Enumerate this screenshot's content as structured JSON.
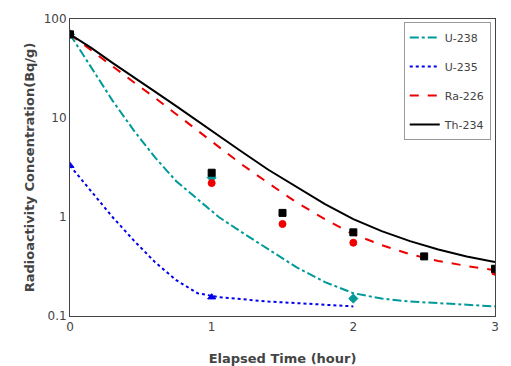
{
  "chart_data": {
    "type": "line",
    "xlabel": "Elapsed Time (hour)",
    "ylabel": "Radioactivity Concentration(Bq/g)",
    "log": "y",
    "grid": false,
    "legend": "upper right",
    "xlim": [
      0,
      3
    ],
    "xticks": [
      0,
      1,
      2,
      3
    ],
    "ylim": [
      0.1,
      100
    ],
    "yticks": [
      0.1,
      1,
      10,
      100
    ],
    "series": [
      {
        "name": "U-238",
        "color": "#009999",
        "line_style": "dashdot",
        "marker": "diamond",
        "x": [
          0,
          0.15,
          0.3,
          0.45,
          0.6,
          0.75,
          0.9,
          1.05,
          1.2,
          1.4,
          1.6,
          1.8,
          2.0,
          2.2,
          2.4,
          2.6,
          2.8,
          3.0
        ],
        "values": [
          70,
          32,
          15,
          7.5,
          4.0,
          2.3,
          1.5,
          1.0,
          0.72,
          0.47,
          0.31,
          0.22,
          0.17,
          0.15,
          0.14,
          0.135,
          0.13,
          0.125
        ],
        "points_x": [
          0,
          1.0,
          2.0
        ],
        "points_values": [
          70,
          2.5,
          0.15
        ]
      },
      {
        "name": "U-235",
        "color": "#0000EE",
        "line_style": "dot",
        "marker": "triangle-up",
        "x": [
          0,
          0.15,
          0.3,
          0.45,
          0.6,
          0.75,
          0.9,
          1.05,
          1.2,
          1.4,
          1.6,
          1.8,
          2.0
        ],
        "values": [
          3.3,
          1.8,
          1.0,
          0.58,
          0.35,
          0.23,
          0.17,
          0.155,
          0.148,
          0.14,
          0.135,
          0.13,
          0.125
        ],
        "points_x": [
          0,
          1.0
        ],
        "points_values": [
          3.3,
          0.155
        ]
      },
      {
        "name": "Ra-226",
        "color": "#EE0000",
        "line_style": "dash",
        "marker": "circle",
        "x": [
          0,
          0.15,
          0.3,
          0.45,
          0.6,
          0.75,
          0.9,
          1.05,
          1.2,
          1.4,
          1.6,
          1.8,
          2.0,
          2.2,
          2.4,
          2.6,
          2.8,
          3.0
        ],
        "values": [
          70,
          48,
          33,
          23,
          16,
          11,
          7.5,
          5.1,
          3.5,
          2.2,
          1.4,
          0.95,
          0.67,
          0.52,
          0.42,
          0.36,
          0.32,
          0.29
        ],
        "points_x": [
          0,
          1.0,
          1.5,
          2.0,
          3.0
        ],
        "points_values": [
          70,
          2.2,
          0.85,
          0.55,
          0.28
        ]
      },
      {
        "name": "Th-234",
        "color": "#000000",
        "line_style": "solid",
        "marker": "square",
        "x": [
          0,
          0.15,
          0.3,
          0.45,
          0.6,
          0.75,
          0.9,
          1.05,
          1.2,
          1.4,
          1.6,
          1.8,
          2.0,
          2.2,
          2.4,
          2.6,
          2.8,
          3.0
        ],
        "values": [
          70,
          51,
          36,
          26,
          18.5,
          13.2,
          9.3,
          6.6,
          4.7,
          3.0,
          2.0,
          1.35,
          0.95,
          0.72,
          0.57,
          0.47,
          0.4,
          0.35
        ],
        "points_x": [
          0,
          1.0,
          1.5,
          2.0,
          2.5,
          3.0
        ],
        "points_values": [
          70,
          2.8,
          1.1,
          0.7,
          0.4,
          0.3
        ]
      }
    ]
  }
}
